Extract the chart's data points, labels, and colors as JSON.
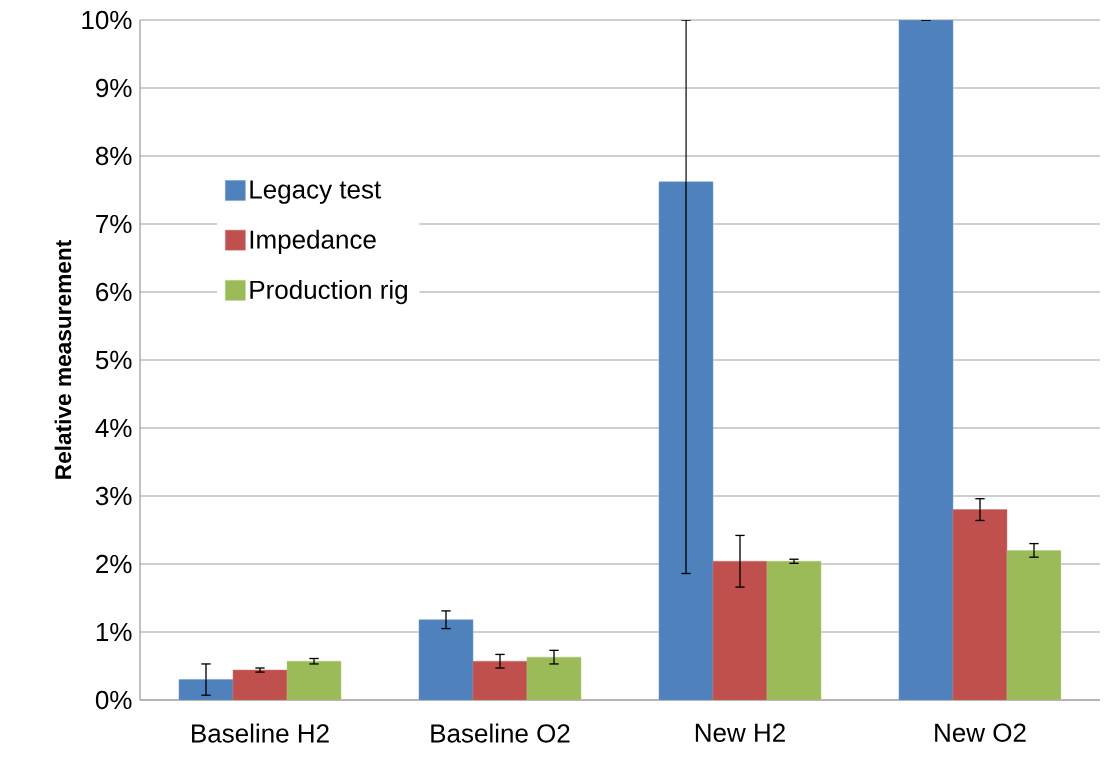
{
  "chart_data": {
    "type": "bar",
    "ylabel": "Relative measurement",
    "categories": [
      "Baseline H2",
      "Baseline O2",
      "New H2",
      "New O2"
    ],
    "series": [
      {
        "name": "Legacy test",
        "color": "#4f81bd",
        "values": [
          0.3,
          1.18,
          7.62,
          10
        ],
        "errors": [
          0.23,
          0.13,
          [
            1.86,
            10
          ],
          null
        ]
      },
      {
        "name": "Impedance",
        "color": "#c0504d",
        "values": [
          0.44,
          0.57,
          2.04,
          2.8
        ],
        "errors": [
          0.03,
          0.1,
          0.38,
          0.16
        ]
      },
      {
        "name": "Production rig",
        "color": "#9bbb59",
        "values": [
          0.57,
          0.63,
          2.04,
          2.2
        ],
        "errors": [
          0.04,
          0.1,
          0.03,
          0.1
        ]
      }
    ],
    "ylim": [
      0,
      10
    ],
    "yticks": [
      {
        "value": 0,
        "label": "0%"
      },
      {
        "value": 1,
        "label": "1%"
      },
      {
        "value": 2,
        "label": "2%"
      },
      {
        "value": 3,
        "label": "3%"
      },
      {
        "value": 4,
        "label": "4%"
      },
      {
        "value": 5,
        "label": "5%"
      },
      {
        "value": 6,
        "label": "6%"
      },
      {
        "value": 7,
        "label": "7%"
      },
      {
        "value": 8,
        "label": "8%"
      },
      {
        "value": 9,
        "label": "9%"
      },
      {
        "value": 10,
        "label": "10%"
      }
    ],
    "grid": "y",
    "legend": "left"
  }
}
